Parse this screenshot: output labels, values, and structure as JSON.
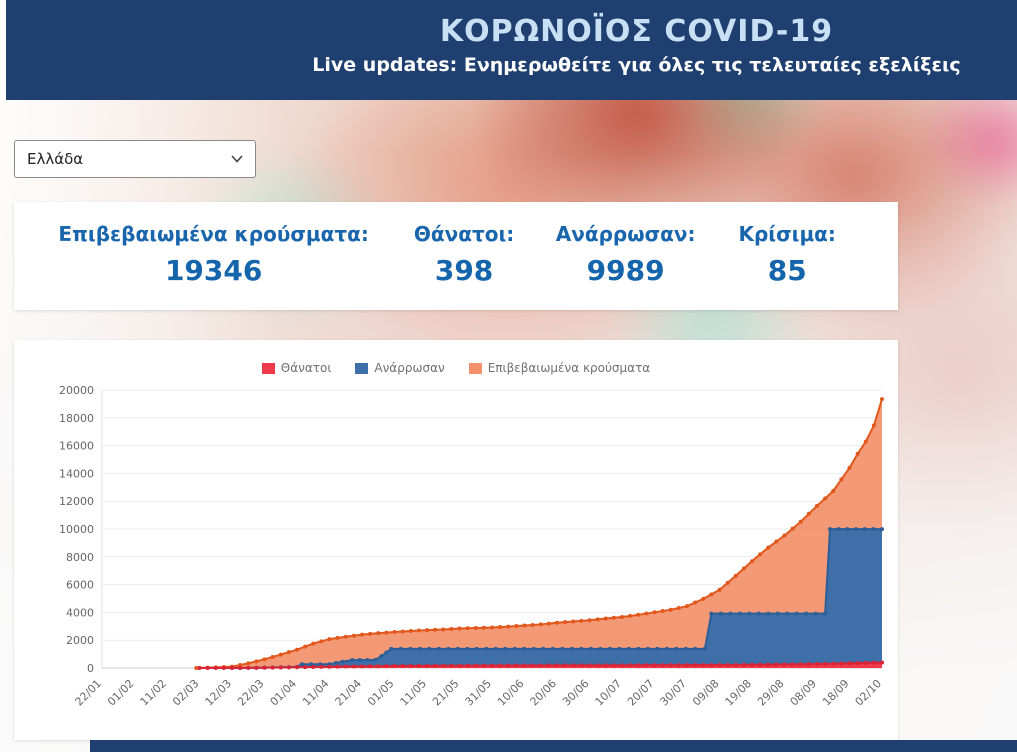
{
  "header": {
    "title": "ΚΟΡΩΝΟΪΟΣ COVID-19",
    "subtitle": "Live updates: Ενημερωθείτε για όλες τις τελευταίες εξελίξεις"
  },
  "filters": {
    "country_select": {
      "value": "Ελλάδα"
    }
  },
  "stats": [
    {
      "label": "Επιβεβαιωμένα κρούσματα:",
      "value": "19346"
    },
    {
      "label": "Θάνατοι:",
      "value": "398"
    },
    {
      "label": "Ανάρρωσαν:",
      "value": "9989"
    },
    {
      "label": "Κρίσιμα:",
      "value": "85"
    }
  ],
  "chart_data": {
    "type": "area",
    "title": "",
    "categories": [
      "22/01",
      "01/02",
      "11/02",
      "02/03",
      "12/03",
      "22/03",
      "01/04",
      "11/04",
      "21/04",
      "01/05",
      "11/05",
      "21/05",
      "31/05",
      "10/06",
      "20/06",
      "30/06",
      "10/07",
      "20/07",
      "30/07",
      "09/08",
      "19/08",
      "29/08",
      "08/09",
      "18/09",
      "02/10"
    ],
    "ylim": [
      0,
      20000
    ],
    "ytick_step": 2000,
    "grid": true,
    "legend_position": "top",
    "series": [
      {
        "name": "Θάνατοι",
        "line_color": "#d92435",
        "fill_color": "#ee3a4a",
        "fill_opacity": 1,
        "points": [
          [
            3,
            0
          ],
          [
            4,
            1
          ],
          [
            4.5,
            5
          ],
          [
            5,
            17
          ],
          [
            5.5,
            32
          ],
          [
            6,
            53
          ],
          [
            6.5,
            73
          ],
          [
            7,
            93
          ],
          [
            7.5,
            105
          ],
          [
            8,
            116
          ],
          [
            8.5,
            130
          ],
          [
            9,
            143
          ],
          [
            9.5,
            148
          ],
          [
            10,
            152
          ],
          [
            10.5,
            160
          ],
          [
            11,
            166
          ],
          [
            11.5,
            171
          ],
          [
            12,
            175
          ],
          [
            13,
            180
          ],
          [
            14,
            188
          ],
          [
            15,
            192
          ],
          [
            16,
            193
          ],
          [
            17,
            200
          ],
          [
            18,
            206
          ],
          [
            19,
            212
          ],
          [
            19.5,
            220
          ],
          [
            20,
            230
          ],
          [
            20.5,
            242
          ],
          [
            21,
            254
          ],
          [
            21.5,
            268
          ],
          [
            22,
            284
          ],
          [
            22.5,
            310
          ],
          [
            23,
            338
          ],
          [
            23.5,
            366
          ],
          [
            24,
            398
          ]
        ]
      },
      {
        "name": "Ανάρρωσαν",
        "line_color": "#2e5e97",
        "fill_color": "#3f6fa9",
        "fill_opacity": 1,
        "points": [
          [
            4,
            0
          ],
          [
            4.5,
            8
          ],
          [
            5,
            30
          ],
          [
            5.5,
            52
          ],
          [
            6,
            78
          ],
          [
            6.15,
            269
          ],
          [
            7,
            269
          ],
          [
            7.4,
            450
          ],
          [
            7.7,
            577
          ],
          [
            8.4,
            577
          ],
          [
            8.6,
            855
          ],
          [
            8.9,
            1374
          ],
          [
            18.55,
            1374
          ],
          [
            18.75,
            3910
          ],
          [
            22.25,
            3910
          ],
          [
            22.4,
            9989
          ],
          [
            24,
            9989
          ]
        ]
      },
      {
        "name": "Επιβεβαιωμένα κρούσματα",
        "line_color": "#e2571c",
        "fill_color": "#f2916b",
        "fill_opacity": 0.93,
        "points": [
          [
            2.9,
            0
          ],
          [
            3,
            7
          ],
          [
            3.5,
            45
          ],
          [
            4,
            99
          ],
          [
            4.5,
            331
          ],
          [
            5,
            624
          ],
          [
            5.5,
            966
          ],
          [
            6,
            1314
          ],
          [
            6.5,
            1755
          ],
          [
            7,
            2081
          ],
          [
            7.5,
            2245
          ],
          [
            8,
            2401
          ],
          [
            8.5,
            2506
          ],
          [
            9,
            2591
          ],
          [
            9.5,
            2663
          ],
          [
            10,
            2726
          ],
          [
            10.5,
            2770
          ],
          [
            11,
            2840
          ],
          [
            11.5,
            2882
          ],
          [
            12,
            2917
          ],
          [
            12.5,
            2980
          ],
          [
            13,
            3058
          ],
          [
            13.5,
            3134
          ],
          [
            14,
            3256
          ],
          [
            14.5,
            3343
          ],
          [
            15,
            3432
          ],
          [
            15.5,
            3562
          ],
          [
            16,
            3672
          ],
          [
            16.5,
            3826
          ],
          [
            17,
            4007
          ],
          [
            17.5,
            4193
          ],
          [
            18,
            4447
          ],
          [
            18.5,
            4974
          ],
          [
            19,
            5623
          ],
          [
            19.5,
            6632
          ],
          [
            20,
            7684
          ],
          [
            20.5,
            8664
          ],
          [
            21,
            9531
          ],
          [
            21.5,
            10524
          ],
          [
            22,
            11663
          ],
          [
            22.5,
            12734
          ],
          [
            23,
            14400
          ],
          [
            23.25,
            15404
          ],
          [
            23.5,
            16286
          ],
          [
            23.75,
            17444
          ],
          [
            24,
            19346
          ]
        ]
      }
    ],
    "draw_order": [
      2,
      1,
      0
    ]
  },
  "theme": {
    "header_bg": "#1e3f70",
    "title_text": "#c9e0f4",
    "stat_text": "#1565ad",
    "axis_text": "#666666"
  }
}
